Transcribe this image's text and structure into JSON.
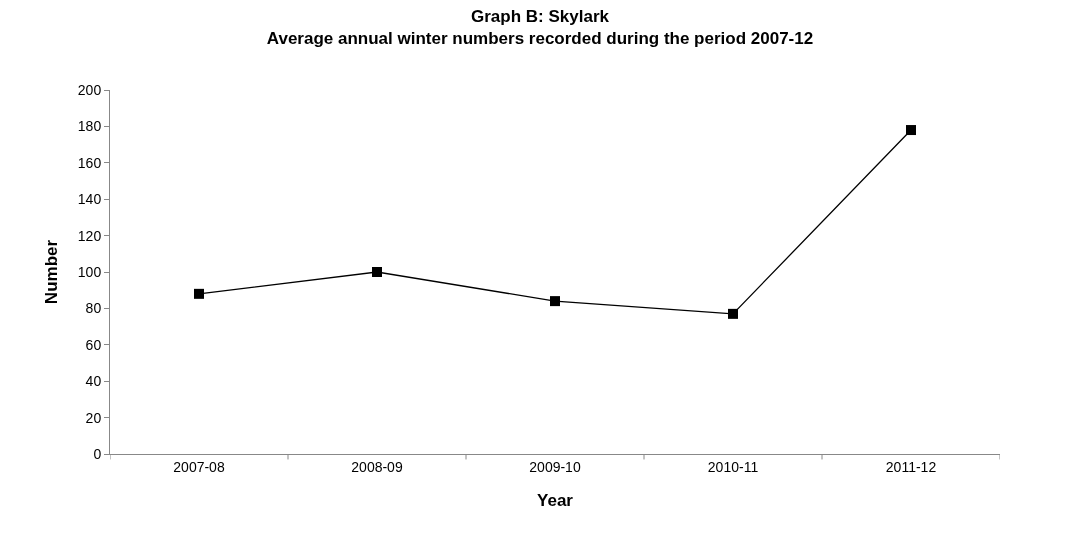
{
  "chart_data": {
    "type": "line",
    "title": "Graph B: Skylark",
    "subtitle": "Average annual winter numbers recorded during the period 2007-12",
    "xlabel": "Year",
    "ylabel": "Number",
    "categories": [
      "2007-08",
      "2008-09",
      "2009-10",
      "2010-11",
      "2011-12"
    ],
    "series": [
      {
        "color": "#000000",
        "values": [
          88,
          100,
          84,
          77,
          178
        ]
      }
    ],
    "ylim": [
      0,
      200
    ],
    "yticks": [
      0,
      20,
      40,
      60,
      80,
      100,
      120,
      140,
      160,
      180,
      200
    ],
    "marker": "square",
    "line_style": "solid"
  }
}
